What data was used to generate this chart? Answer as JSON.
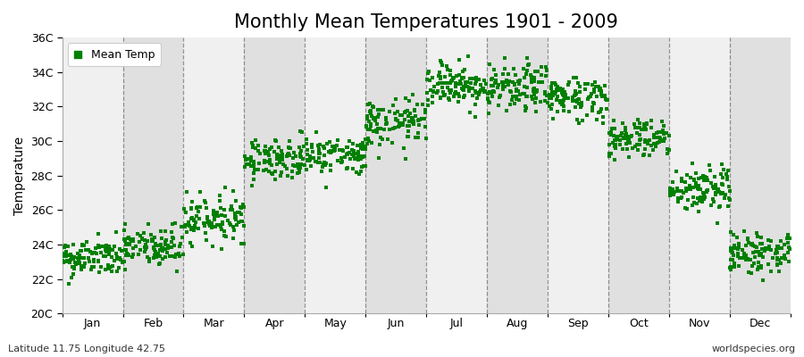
{
  "title": "Monthly Mean Temperatures 1901 - 2009",
  "ylabel": "Temperature",
  "xlabel": "",
  "subtitle_left": "Latitude 11.75 Longitude 42.75",
  "subtitle_right": "worldspecies.org",
  "legend_label": "Mean Temp",
  "dot_color": "#008000",
  "bg_color": "#ffffff",
  "plot_bg_color": "#ffffff",
  "band_color_light": "#f0f0f0",
  "band_color_dark": "#e0e0e0",
  "ylim": [
    20,
    36
  ],
  "yticks": [
    20,
    22,
    24,
    26,
    28,
    30,
    32,
    34,
    36
  ],
  "ytick_labels": [
    "20C",
    "22C",
    "24C",
    "26C",
    "28C",
    "30C",
    "32C",
    "34C",
    "36C"
  ],
  "months": [
    "Jan",
    "Feb",
    "Mar",
    "Apr",
    "May",
    "Jun",
    "Jul",
    "Aug",
    "Sep",
    "Oct",
    "Nov",
    "Dec"
  ],
  "month_mean_temps": [
    23.2,
    23.8,
    25.5,
    29.0,
    29.2,
    31.0,
    33.3,
    33.0,
    32.5,
    30.2,
    27.2,
    23.5
  ],
  "month_std_temps": [
    0.55,
    0.65,
    0.65,
    0.6,
    0.55,
    0.7,
    0.65,
    0.7,
    0.65,
    0.6,
    0.7,
    0.6
  ],
  "n_years": 109,
  "seed": 42,
  "title_fontsize": 15,
  "axis_label_fontsize": 10,
  "tick_fontsize": 9,
  "subtitle_fontsize": 8,
  "dot_size": 6,
  "dot_alpha": 1.0,
  "dashed_line_color": "#555555",
  "dashed_line_alpha": 0.6
}
